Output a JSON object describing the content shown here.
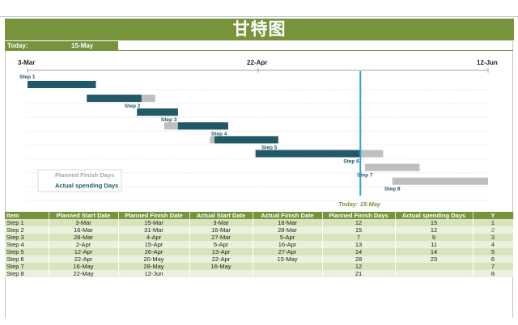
{
  "title": "甘特图",
  "today": {
    "label": "Today:",
    "value": "15-May",
    "marker_text": "Today: 15-May",
    "marker_date": "2020-05-15"
  },
  "axis": {
    "start_label": "3-Mar",
    "mid_label": "22-Apr",
    "end_label": "12-Jun",
    "start": "2020-03-03",
    "end": "2020-06-12"
  },
  "legend": {
    "planned": "Planned Finish Days",
    "actual": "Actual spending Days"
  },
  "colors": {
    "brand": "#77933c",
    "actual_bar": "#215967",
    "planned_bar": "#bfbfbf",
    "today_line": "#31a2d5",
    "today_text": "#77933c",
    "row_odd": "#d7e4bc",
    "row_even": "#ebf1de"
  },
  "table": {
    "headers": [
      "Item",
      "Planned Start Date",
      "Planned Finish Date",
      "Actual Start Date",
      "Actual Finish Date",
      "Planned Finish Days",
      "Actual spending Days",
      "Y"
    ],
    "rows": [
      [
        "Step 1",
        "3-Mar",
        "15-Mar",
        "3-Mar",
        "18-Mar",
        "12",
        "15",
        "1"
      ],
      [
        "Step 2",
        "16-Mar",
        "31-Mar",
        "16-Mar",
        "28-Mar",
        "15",
        "12",
        "2"
      ],
      [
        "Step 3",
        "28-Mar",
        "4-Apr",
        "27-Mar",
        "5-Apr",
        "7",
        "9",
        "3"
      ],
      [
        "Step 4",
        "2-Apr",
        "15-Apr",
        "5-Apr",
        "16-Apr",
        "13",
        "11",
        "4"
      ],
      [
        "Step 5",
        "12-Apr",
        "26-Apr",
        "13-Apr",
        "27-Apr",
        "14",
        "14",
        "5"
      ],
      [
        "Step 6",
        "22-Apr",
        "20-May",
        "22-Apr",
        "15-May",
        "28",
        "23",
        "6"
      ],
      [
        "Step 7",
        "16-May",
        "28-May",
        "16-May",
        "",
        "12",
        "",
        "7"
      ],
      [
        "Step 8",
        "22-May",
        "12-Jun",
        "",
        "",
        "21",
        "",
        "8"
      ]
    ]
  },
  "chart_data": {
    "type": "gantt",
    "steps": [
      {
        "name": "Step 1",
        "planned_start": "2020-03-03",
        "planned_end": "2020-03-15",
        "actual_start": "2020-03-03",
        "actual_end": "2020-03-18"
      },
      {
        "name": "Step 2",
        "planned_start": "2020-03-16",
        "planned_end": "2020-03-31",
        "actual_start": "2020-03-16",
        "actual_end": "2020-03-28"
      },
      {
        "name": "Step 3",
        "planned_start": "2020-03-28",
        "planned_end": "2020-04-04",
        "actual_start": "2020-03-27",
        "actual_end": "2020-04-05"
      },
      {
        "name": "Step 4",
        "planned_start": "2020-04-02",
        "planned_end": "2020-04-15",
        "actual_start": "2020-04-05",
        "actual_end": "2020-04-16"
      },
      {
        "name": "Step 5",
        "planned_start": "2020-04-12",
        "planned_end": "2020-04-26",
        "actual_start": "2020-04-13",
        "actual_end": "2020-04-27"
      },
      {
        "name": "Step 6",
        "planned_start": "2020-04-22",
        "planned_end": "2020-05-20",
        "actual_start": "2020-04-22",
        "actual_end": "2020-05-15"
      },
      {
        "name": "Step 7",
        "planned_start": "2020-05-16",
        "planned_end": "2020-05-28",
        "actual_start": null,
        "actual_end": null
      },
      {
        "name": "Step 8",
        "planned_start": "2020-05-22",
        "planned_end": "2020-06-12",
        "actual_start": null,
        "actual_end": null
      }
    ]
  }
}
